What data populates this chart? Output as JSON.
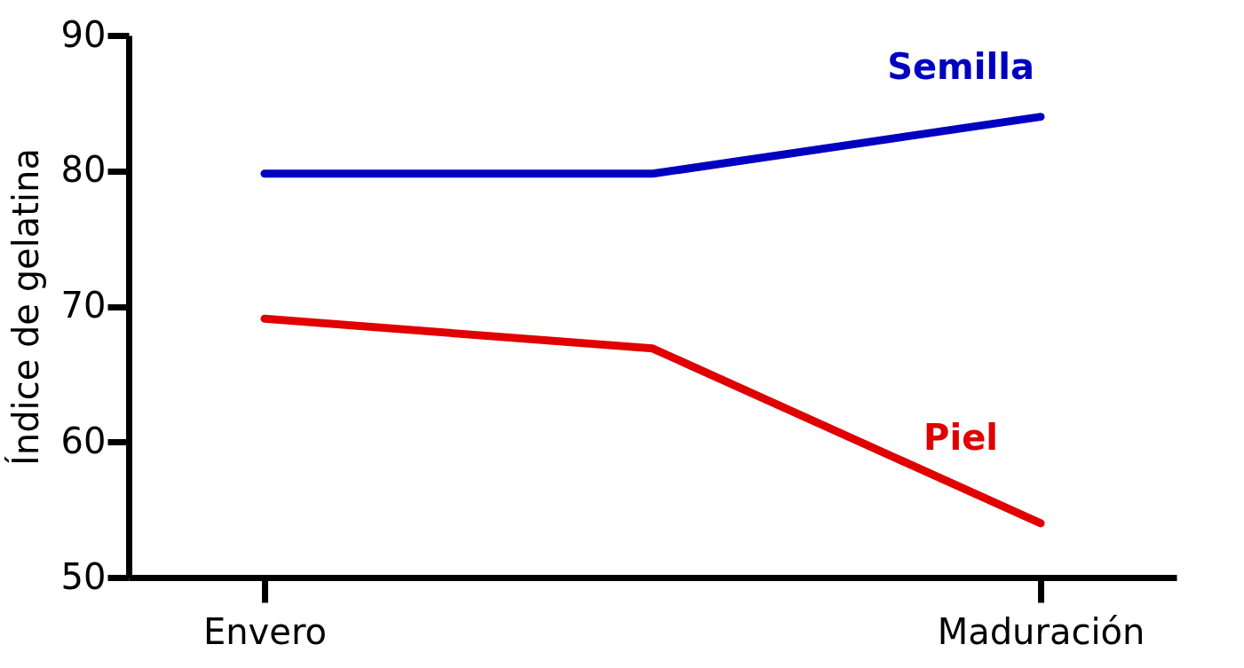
{
  "chart_data": {
    "type": "line",
    "ylabel": "Índice de gelatina",
    "categories": [
      "Envero",
      null,
      "Maduración"
    ],
    "series": [
      {
        "name": "Semilla",
        "color": "#0000c0",
        "values": [
          79.8,
          79.8,
          84
        ]
      },
      {
        "name": "Piel",
        "color": "#e00000",
        "values": [
          69.1,
          66.9,
          54
        ]
      }
    ],
    "ylim": [
      50,
      90
    ],
    "yticks": [
      50,
      60,
      70,
      80,
      90
    ],
    "grid": false,
    "legend": false,
    "marker": "none",
    "line_style": "solid"
  }
}
